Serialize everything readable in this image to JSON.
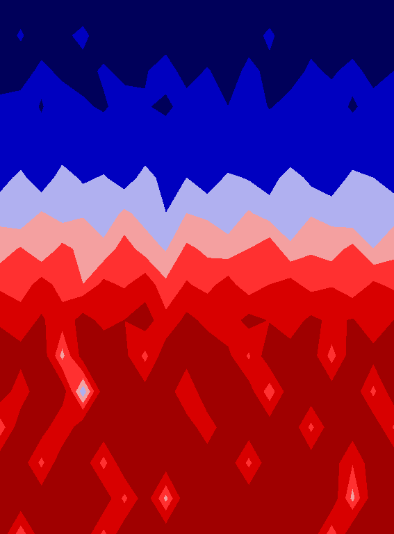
{
  "chart_data": {
    "type": "contour",
    "tick_labels": false,
    "levels": [
      0,
      0.15,
      0.35,
      0.45,
      0.55,
      0.65,
      0.8,
      1.0
    ],
    "colors": [
      "#00005a",
      "#0000c0",
      "#b0b0f0",
      "#f4a0a0",
      "#ff3030",
      "#d80000",
      "#a00000"
    ],
    "cells": [
      [
        0.05,
        0.1,
        0.04,
        0.12,
        0.06,
        0.08,
        0.14,
        0.05,
        0.1,
        0.03,
        0.09,
        0.13,
        0.05,
        0.07,
        0.11,
        0.04,
        0.1,
        0.06,
        0.12,
        0.05
      ],
      [
        0.1,
        0.16,
        0.08,
        0.12,
        0.18,
        0.07,
        0.1,
        0.15,
        0.09,
        0.12,
        0.06,
        0.14,
        0.1,
        0.17,
        0.08,
        0.11,
        0.15,
        0.07,
        0.13,
        0.09
      ],
      [
        0.13,
        0.09,
        0.18,
        0.12,
        0.1,
        0.17,
        0.11,
        0.14,
        0.2,
        0.1,
        0.16,
        0.09,
        0.18,
        0.12,
        0.1,
        0.17,
        0.13,
        0.19,
        0.1,
        0.15
      ],
      [
        0.16,
        0.2,
        0.14,
        0.22,
        0.17,
        0.13,
        0.21,
        0.16,
        0.12,
        0.2,
        0.18,
        0.15,
        0.22,
        0.14,
        0.19,
        0.16,
        0.21,
        0.13,
        0.2,
        0.17
      ],
      [
        0.2,
        0.24,
        0.19,
        0.26,
        0.22,
        0.25,
        0.18,
        0.27,
        0.23,
        0.2,
        0.26,
        0.22,
        0.19,
        0.25,
        0.23,
        0.27,
        0.2,
        0.24,
        0.26,
        0.21
      ],
      [
        0.3,
        0.38,
        0.27,
        0.4,
        0.33,
        0.36,
        0.29,
        0.39,
        0.31,
        0.35,
        0.28,
        0.37,
        0.34,
        0.3,
        0.4,
        0.32,
        0.27,
        0.38,
        0.35,
        0.3
      ],
      [
        0.42,
        0.36,
        0.46,
        0.4,
        0.44,
        0.38,
        0.47,
        0.41,
        0.35,
        0.45,
        0.43,
        0.39,
        0.46,
        0.4,
        0.37,
        0.44,
        0.42,
        0.36,
        0.45,
        0.41
      ],
      [
        0.5,
        0.56,
        0.46,
        0.58,
        0.52,
        0.48,
        0.6,
        0.5,
        0.44,
        0.57,
        0.53,
        0.49,
        0.55,
        0.62,
        0.47,
        0.54,
        0.5,
        0.58,
        0.45,
        0.52
      ],
      [
        0.62,
        0.58,
        0.7,
        0.6,
        0.55,
        0.68,
        0.63,
        0.72,
        0.57,
        0.66,
        0.61,
        0.7,
        0.56,
        0.65,
        0.69,
        0.6,
        0.64,
        0.55,
        0.67,
        0.62
      ],
      [
        0.78,
        0.72,
        0.82,
        0.7,
        0.86,
        0.75,
        0.8,
        0.88,
        0.68,
        0.84,
        0.76,
        0.71,
        0.85,
        0.79,
        0.73,
        0.83,
        0.77,
        0.81,
        0.7,
        0.8
      ],
      [
        0.88,
        0.85,
        0.9,
        0.5,
        0.86,
        0.92,
        0.84,
        0.6,
        0.9,
        0.87,
        0.89,
        0.83,
        0.62,
        0.91,
        0.86,
        0.88,
        0.58,
        0.9,
        0.85,
        0.87
      ],
      [
        0.9,
        0.7,
        0.92,
        0.89,
        0.35,
        0.88,
        0.91,
        0.86,
        0.9,
        0.65,
        0.93,
        0.89,
        0.87,
        0.55,
        0.9,
        0.92,
        0.88,
        0.91,
        0.6,
        0.9
      ],
      [
        0.55,
        0.9,
        0.88,
        0.65,
        0.91,
        0.93,
        0.89,
        0.92,
        0.9,
        0.88,
        0.7,
        0.91,
        0.9,
        0.89,
        0.92,
        0.6,
        0.9,
        0.88,
        0.91,
        0.62
      ],
      [
        0.91,
        0.89,
        0.6,
        0.92,
        0.9,
        0.58,
        0.93,
        0.91,
        0.88,
        0.92,
        0.9,
        0.89,
        0.6,
        0.91,
        0.93,
        0.9,
        0.88,
        0.65,
        0.9,
        0.92
      ],
      [
        0.89,
        0.92,
        0.9,
        0.88,
        0.93,
        0.91,
        0.6,
        0.89,
        0.5,
        0.92,
        0.9,
        0.93,
        0.91,
        0.89,
        0.9,
        0.92,
        0.91,
        0.5,
        0.89,
        0.9
      ],
      [
        0.92,
        0.55,
        0.9,
        0.93,
        0.91,
        0.6,
        0.92,
        0.9,
        0.91,
        0.89,
        0.93,
        0.91,
        0.9,
        0.92,
        0.89,
        0.91,
        0.55,
        0.93,
        0.9,
        0.91
      ]
    ]
  }
}
